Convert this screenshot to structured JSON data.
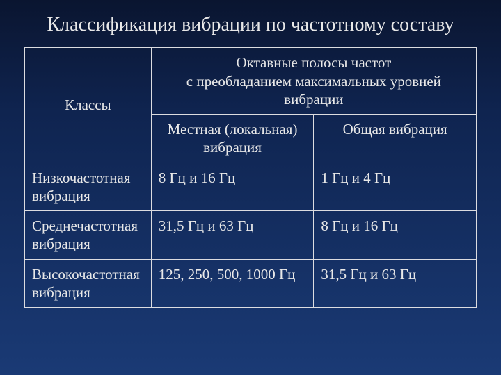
{
  "title": "Классификация вибрации по частотному составу",
  "table": {
    "header": {
      "classes_label": "Классы",
      "main_span": "Октавные полосы частот\nс преобладанием максимальных уровней вибрации",
      "sub1": "Местная (локальная) вибрация",
      "sub2": "Общая вибрация"
    },
    "rows": [
      {
        "label": "Низкочастотная вибрация",
        "local": "8 Гц и 16 Гц",
        "general": "1 Гц и 4 Гц"
      },
      {
        "label": "Среднечастотная вибрация",
        "local": "31,5 Гц и 63 Гц",
        "general": "8 Гц и 16 Гц"
      },
      {
        "label": "Высокочастотная вибрация",
        "local": "125,  250,  500, 1000 Гц",
        "general": "31,5 Гц и 63 Гц"
      }
    ]
  },
  "style": {
    "bg_gradient_top": "#0a1530",
    "bg_gradient_mid": "#0f2450",
    "bg_gradient_bottom": "#1a3a75",
    "text_color": "#e8e8e8",
    "border_color": "#dcdce0",
    "title_fontsize": 28,
    "cell_fontsize": 21
  }
}
